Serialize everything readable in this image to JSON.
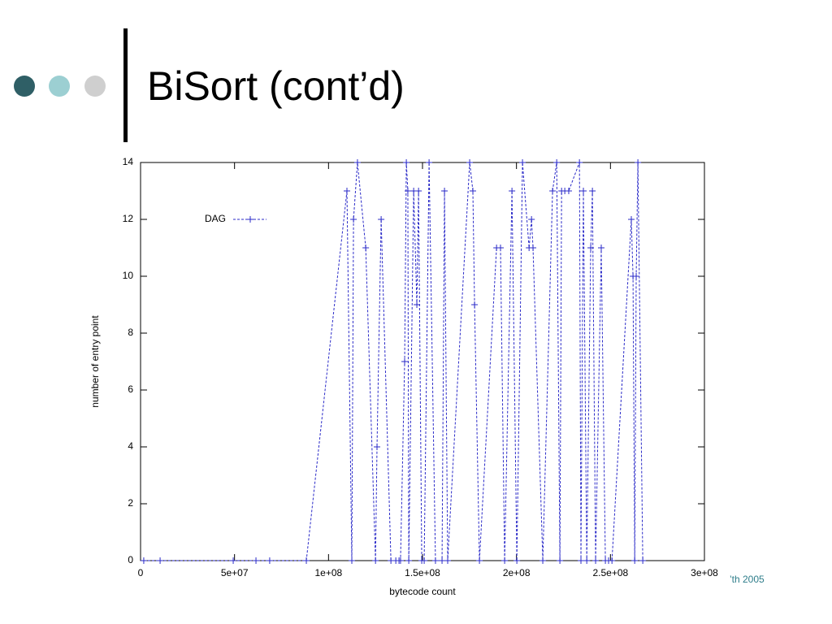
{
  "slide_title": "BiSort (cont’d)",
  "footer": "’th 2005",
  "chart_data": {
    "type": "line",
    "xlabel": "bytecode count",
    "ylabel": "number of entry point",
    "xlim": [
      0,
      300000000
    ],
    "ylim": [
      0,
      14
    ],
    "xticks": [
      0,
      {
        "value": 50000000,
        "label": "5e+07"
      },
      {
        "value": 100000000,
        "label": "1e+08"
      },
      {
        "value": 150000000,
        "label": "1.5e+08"
      },
      {
        "value": 200000000,
        "label": "2e+08"
      },
      {
        "value": 250000000,
        "label": "2.5e+08"
      },
      {
        "value": 300000000,
        "label": "3e+08"
      }
    ],
    "yticks": [
      0,
      2,
      4,
      6,
      8,
      10,
      12,
      14
    ],
    "grid": false,
    "legend": "top left",
    "x": [
      1700000,
      10400000,
      49300000,
      61400000,
      68700000,
      88200000,
      109800000,
      112400000,
      113300000,
      115400000,
      119800000,
      125000000,
      125800000,
      128000000,
      133200000,
      135800000,
      137500000,
      138300000,
      140500000,
      141400000,
      142200000,
      142700000,
      145300000,
      147000000,
      147900000,
      149600000,
      150900000,
      153500000,
      156900000,
      160400000,
      161700000,
      163400000,
      175100000,
      176800000,
      177700000,
      180300000,
      189400000,
      191500000,
      193700000,
      197600000,
      200200000,
      203200000,
      206700000,
      208000000,
      208800000,
      214000000,
      219200000,
      221400000,
      223100000,
      224000000,
      225700000,
      227800000,
      233500000,
      234300000,
      235600000,
      237400000,
      239500000,
      240400000,
      242100000,
      245100000,
      247300000,
      249000000,
      250800000,
      261100000,
      262000000,
      262900000,
      263700000,
      264600000,
      267200000
    ],
    "series": [
      {
        "name": "DAG",
        "color": "#2a2ac8",
        "values": [
          0,
          0,
          0,
          0,
          0,
          0,
          13,
          0,
          12,
          14,
          11,
          0,
          4,
          12,
          0,
          0,
          0,
          0,
          7,
          14,
          13,
          0,
          13,
          9,
          13,
          0,
          0,
          14,
          0,
          0,
          13,
          0,
          14,
          13,
          9,
          0,
          11,
          11,
          0,
          13,
          0,
          14,
          11,
          12,
          11,
          0,
          13,
          14,
          0,
          13,
          13,
          13,
          14,
          0,
          13,
          0,
          11,
          13,
          0,
          11,
          0,
          0,
          0,
          12,
          10,
          0,
          10,
          14,
          0
        ]
      }
    ]
  }
}
